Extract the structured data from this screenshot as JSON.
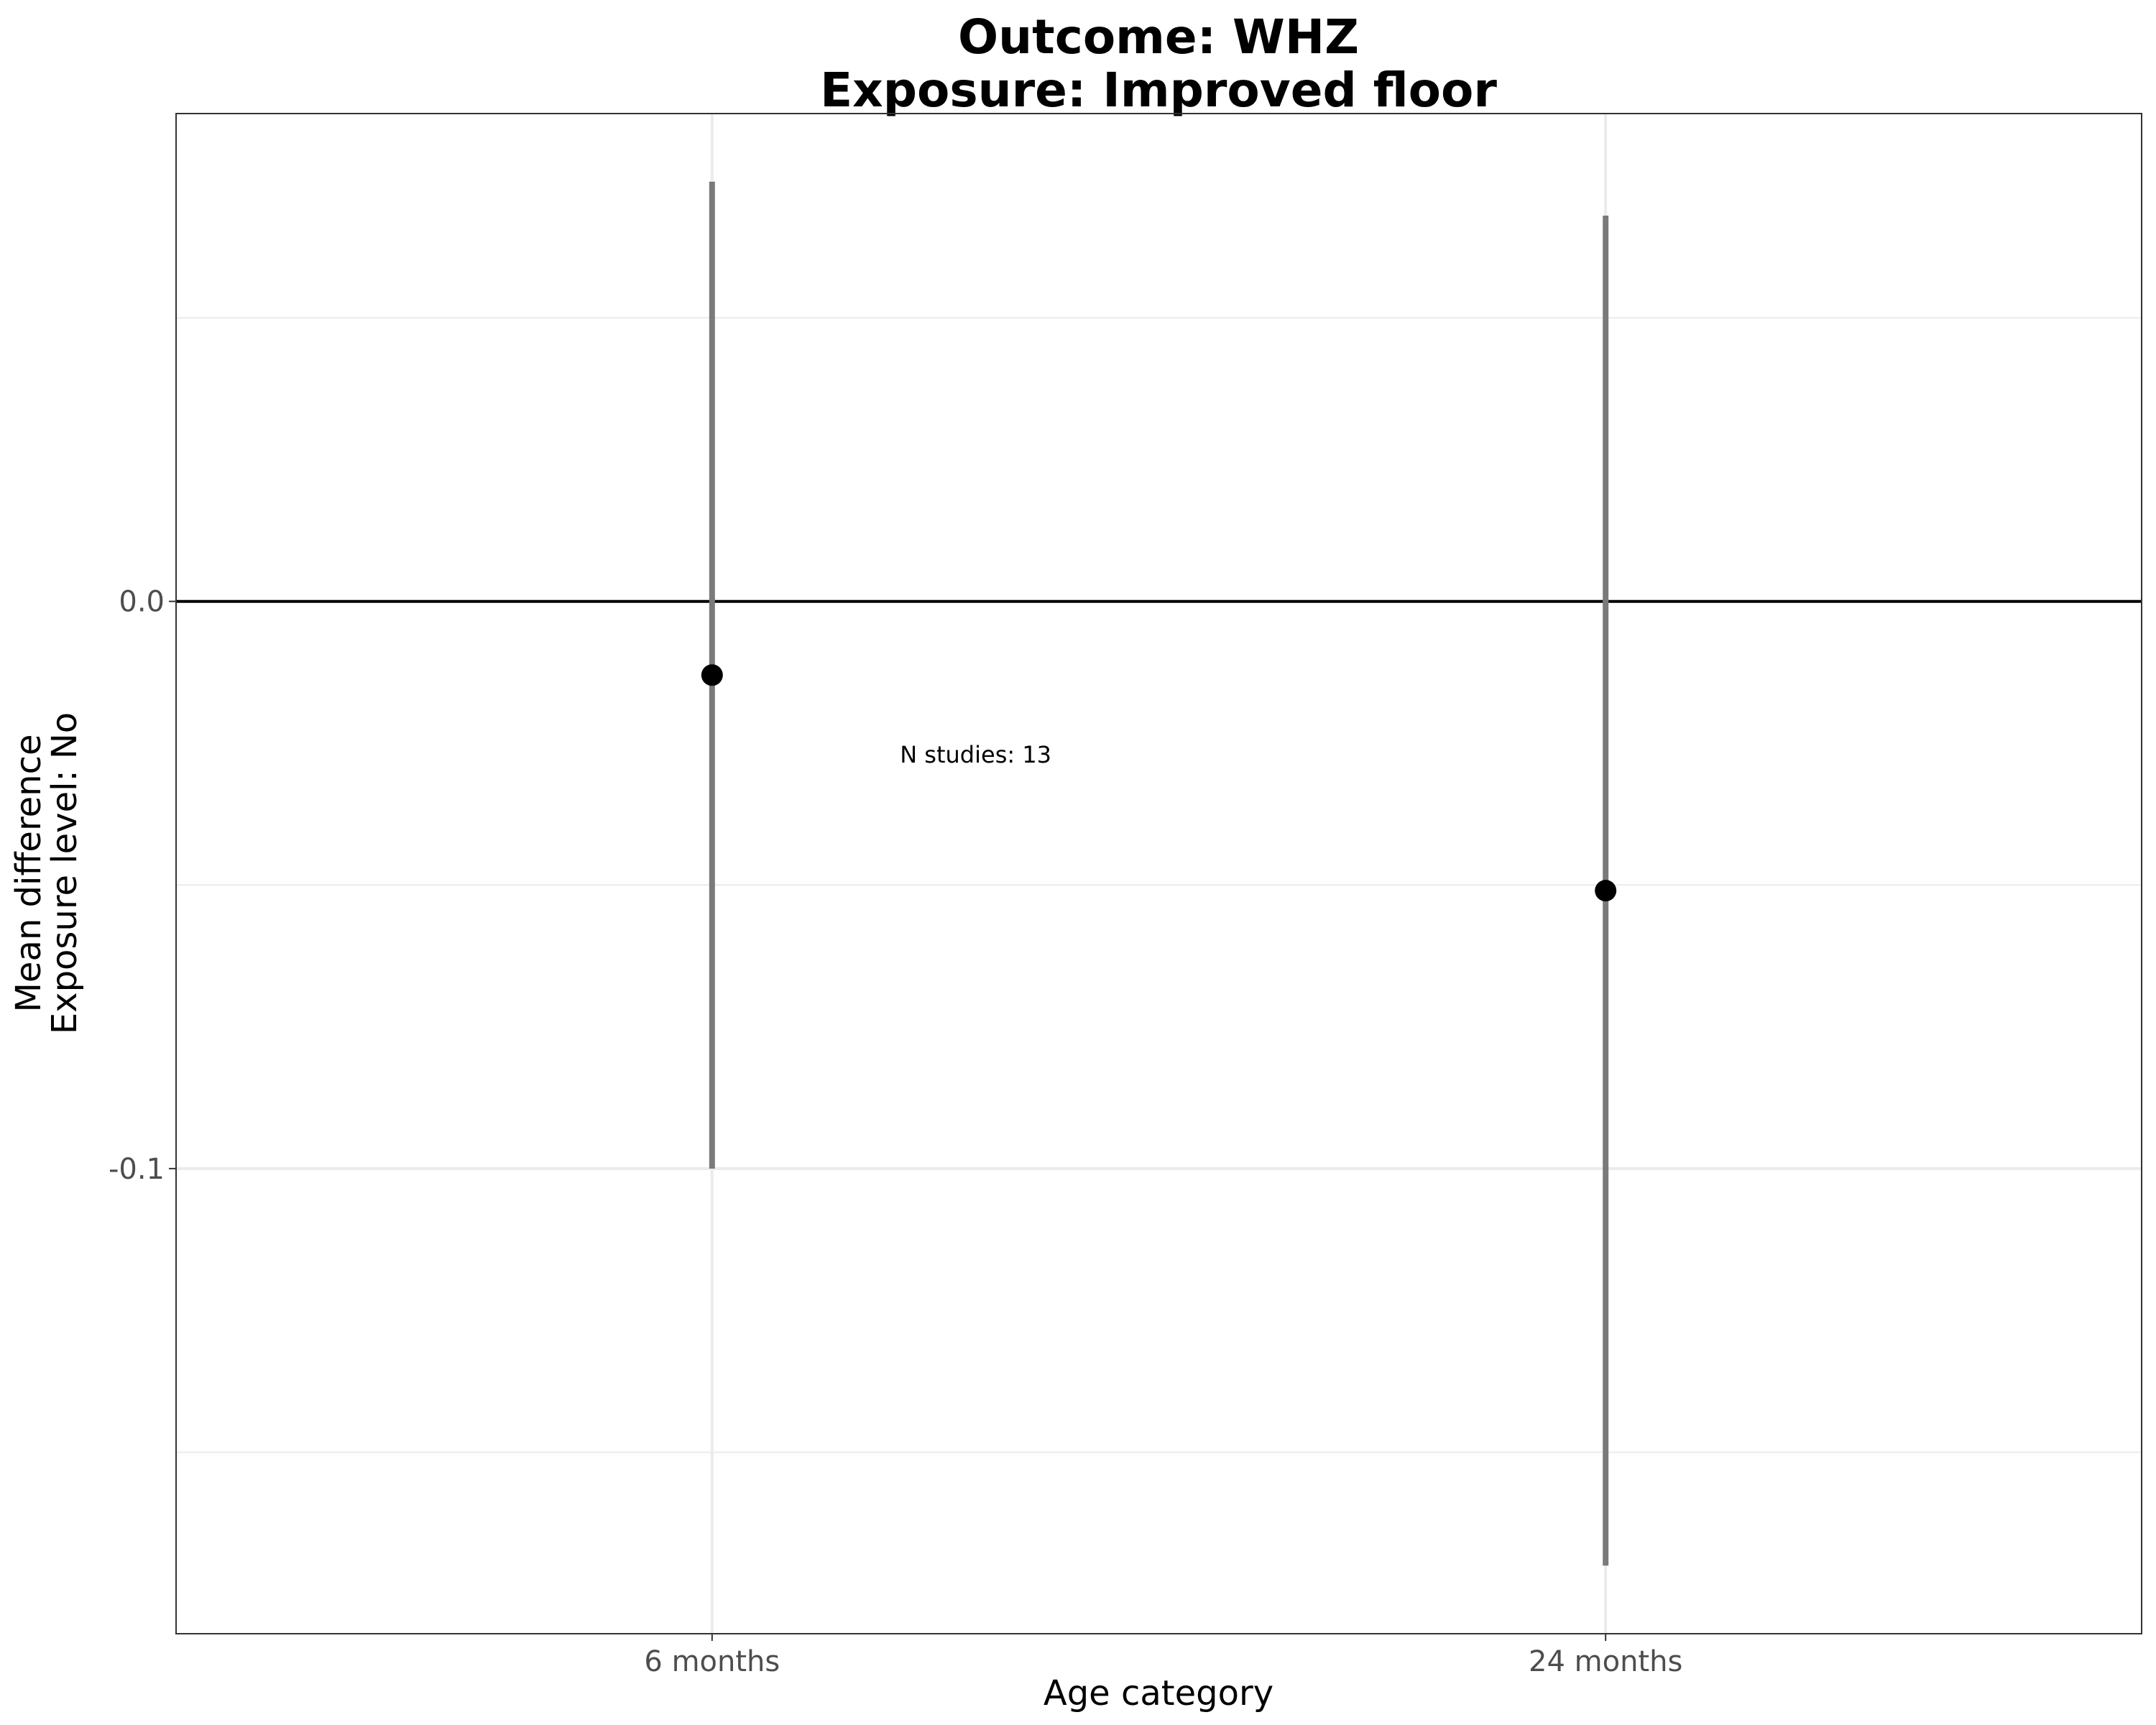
{
  "chart_data": {
    "type": "scatter",
    "title_lines": [
      "Outcome: WHZ",
      "Exposure: Improved floor"
    ],
    "xlabel": "Age category",
    "ylabel_lines": [
      "Mean difference",
      "Exposure level: No"
    ],
    "categories": [
      "6 months",
      "24 months"
    ],
    "points": [
      {
        "x": "6 months",
        "estimate": -0.013,
        "ci_lower": -0.1,
        "ci_upper": 0.074
      },
      {
        "x": "24 months",
        "estimate": -0.051,
        "ci_lower": -0.17,
        "ci_upper": 0.068
      }
    ],
    "yticks": [
      0.0,
      -0.1
    ],
    "ytick_labels": [
      "0.0",
      "-0.1"
    ],
    "ylim": [
      -0.182,
      0.086
    ],
    "reference_line_y": 0,
    "grid": true,
    "annotation": {
      "text": "N studies: 13",
      "x_between": "6 months",
      "y": -0.027
    }
  },
  "colors": {
    "point": "#000000",
    "errorbar": "#7a7a7a",
    "reference_line": "#000000",
    "grid": "#ebebeb",
    "panel_border": "#333333"
  }
}
